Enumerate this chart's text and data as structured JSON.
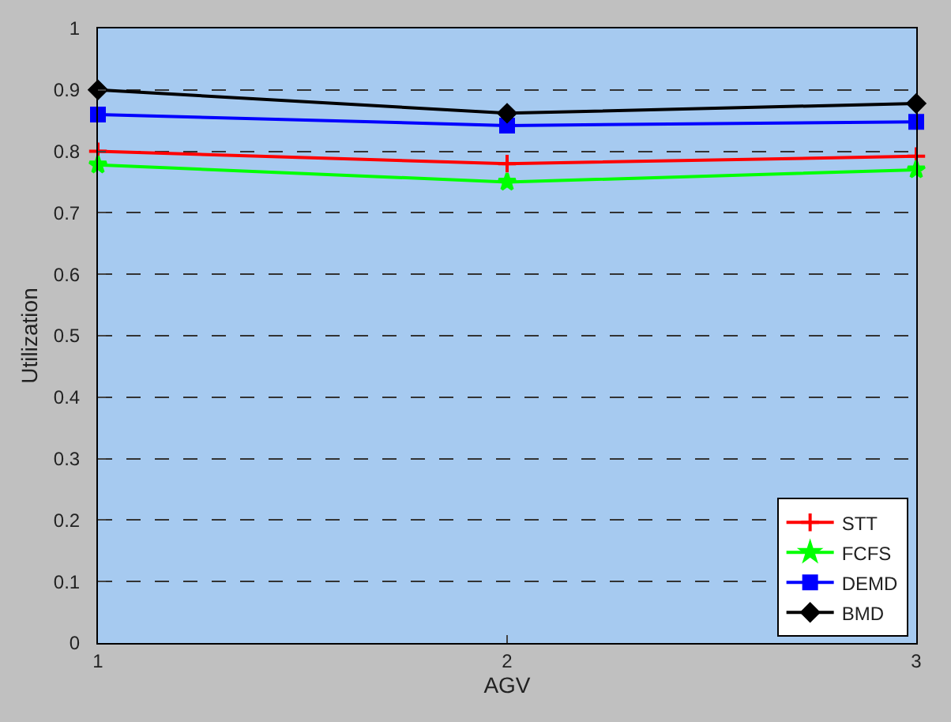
{
  "chart_data": {
    "type": "line",
    "xlabel": "AGV",
    "ylabel": "Utilization",
    "x": [
      1,
      2,
      3
    ],
    "xlim": [
      1,
      3
    ],
    "xticks": [
      1,
      2,
      3
    ],
    "ylim": [
      0,
      1
    ],
    "yticks": [
      0,
      0.1,
      0.2,
      0.3,
      0.4,
      0.5,
      0.6,
      0.7,
      0.8,
      0.9,
      1
    ],
    "grid": "y",
    "legend": "bottom right",
    "line_style": "solid",
    "series": [
      {
        "name": "STT",
        "color": "#ff0000",
        "values": [
          0.8,
          0.78,
          0.792
        ],
        "marker": "cross"
      },
      {
        "name": "FCFS",
        "color": "#00ff00",
        "values": [
          0.778,
          0.75,
          0.77
        ],
        "marker": "star"
      },
      {
        "name": "DEMD",
        "color": "#0000ff",
        "values": [
          0.86,
          0.842,
          0.848
        ],
        "marker": "square"
      },
      {
        "name": "BMD",
        "color": "#000000",
        "values": [
          0.9,
          0.862,
          0.878
        ],
        "marker": "diamond"
      }
    ]
  }
}
